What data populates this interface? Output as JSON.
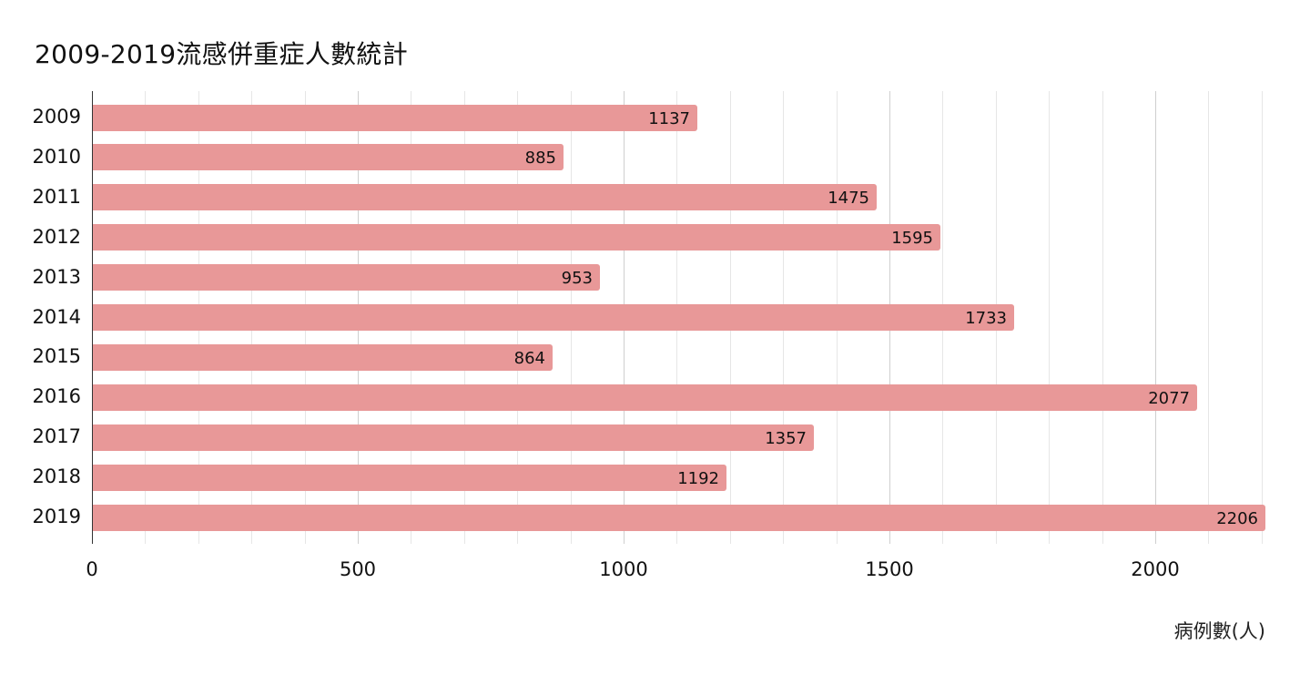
{
  "chart_data": {
    "type": "bar",
    "orientation": "horizontal",
    "title": "2009-2019流感併重症人數統計",
    "xlabel": "病例數(人)",
    "ylabel": "",
    "categories": [
      "2009",
      "2010",
      "2011",
      "2012",
      "2013",
      "2014",
      "2015",
      "2016",
      "2017",
      "2018",
      "2019"
    ],
    "values": [
      1137,
      885,
      1475,
      1595,
      953,
      1733,
      864,
      2077,
      1357,
      1192,
      2206
    ],
    "xlim": [
      0,
      2206
    ],
    "x_ticks": [
      "0",
      "500",
      "1000",
      "1500",
      "2000"
    ],
    "x_tick_values": [
      0,
      500,
      1000,
      1500,
      2000
    ],
    "minor_grid_step": 100,
    "grid": true,
    "legend": null,
    "data_labels": true,
    "bar_color": "#e89898"
  }
}
